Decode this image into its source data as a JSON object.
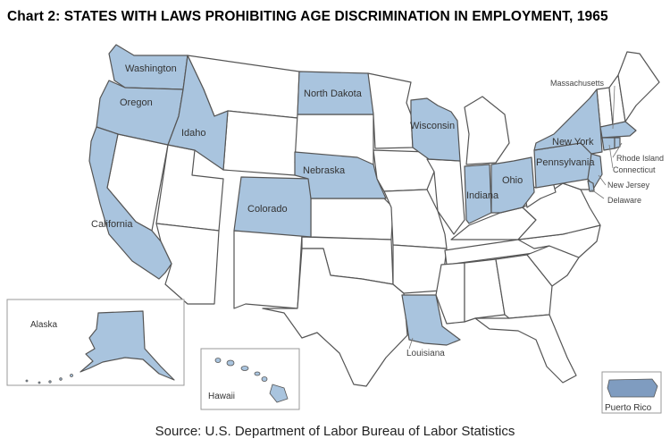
{
  "title": "Chart 2: STATES WITH LAWS PROHIBITING AGE DISCRIMINATION IN EMPLOYMENT, 1965",
  "source": "Source: U.S. Department of Labor Bureau of Labor Statistics",
  "colors": {
    "highlight": "#a9c4de",
    "other": "#ffffff",
    "border": "#555555"
  },
  "highlighted_states": [
    "Washington",
    "Oregon",
    "Idaho",
    "California",
    "Colorado",
    "Nebraska",
    "North Dakota",
    "Wisconsin",
    "Indiana",
    "Ohio",
    "Pennsylvania",
    "New York",
    "New Jersey",
    "Delaware",
    "Massachusetts",
    "Rhode Island",
    "Connecticut",
    "Louisiana",
    "Alaska",
    "Hawaii",
    "Puerto Rico"
  ],
  "labels": {
    "washington": "Washington",
    "oregon": "Oregon",
    "idaho": "Idaho",
    "california": "California",
    "colorado": "Colorado",
    "nebraska": "Nebraska",
    "north_dakota": "North Dakota",
    "wisconsin": "Wisconsin",
    "indiana": "Indiana",
    "ohio": "Ohio",
    "pennsylvania": "Pennsylvania",
    "new_york": "New York",
    "massachusetts": "Massachusetts",
    "rhode_island": "Rhode Island",
    "connecticut": "Connecticut",
    "new_jersey": "New Jersey",
    "delaware": "Delaware",
    "louisiana": "Louisiana",
    "alaska": "Alaska",
    "hawaii": "Hawaii",
    "puerto_rico": "Puerto Rico"
  }
}
